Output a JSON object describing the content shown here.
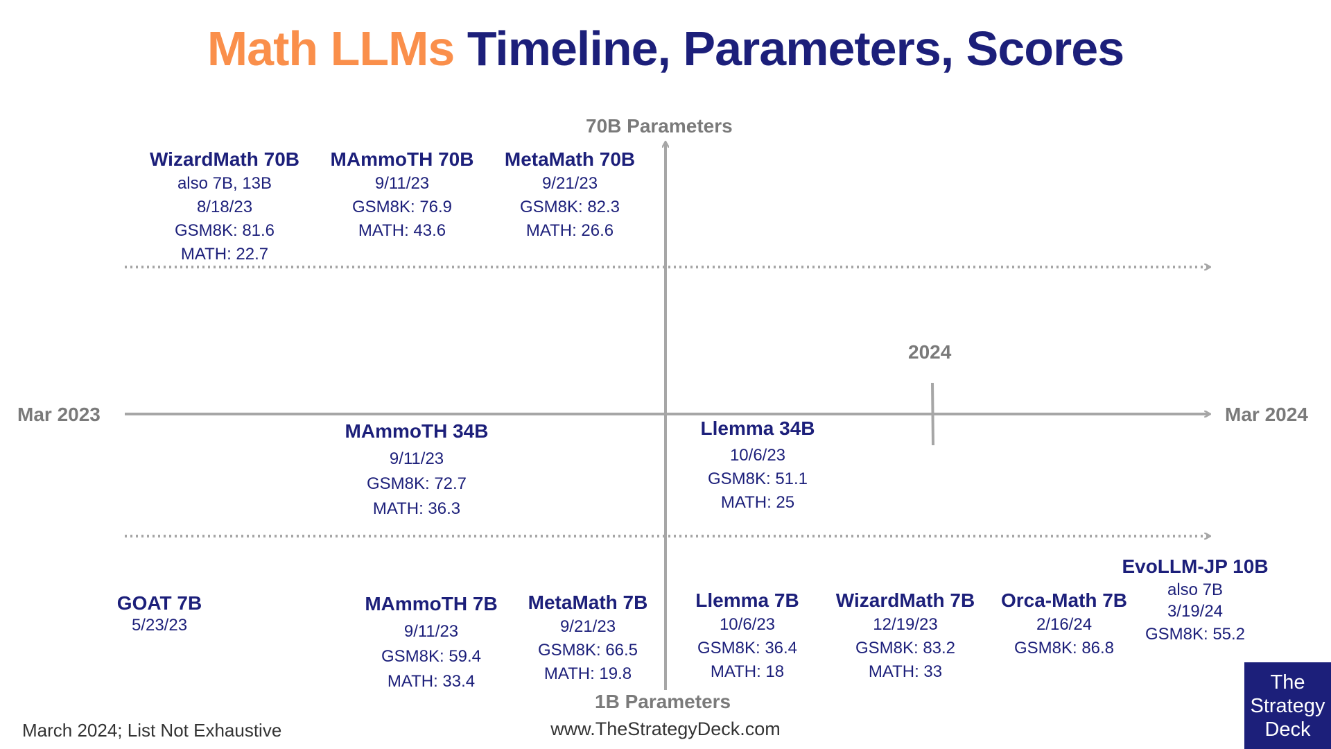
{
  "title": {
    "accent": "Math LLMs",
    "rest": "Timeline, Parameters, Scores"
  },
  "axes": {
    "top": "70B Parameters",
    "bottom": "1B Parameters",
    "left": "Mar 2023",
    "right": "Mar 2024",
    "mid_tick": "2024"
  },
  "models": [
    {
      "name": "WizardMath 70B",
      "lines": [
        "also 7B, 13B",
        "8/18/23",
        "GSM8K: 81.6",
        "MATH: 22.7"
      ]
    },
    {
      "name": "MAmmoTH 70B",
      "lines": [
        "9/11/23",
        "GSM8K: 76.9",
        "MATH: 43.6"
      ]
    },
    {
      "name": "MetaMath 70B",
      "lines": [
        "9/21/23",
        "GSM8K: 82.3",
        "MATH: 26.6"
      ]
    },
    {
      "name": "MAmmoTH 34B",
      "lines": [
        "9/11/23",
        "GSM8K: 72.7",
        "MATH: 36.3"
      ]
    },
    {
      "name": "Llemma 34B",
      "lines": [
        "10/6/23",
        "GSM8K: 51.1",
        "MATH: 25"
      ]
    },
    {
      "name": "GOAT 7B",
      "lines": [
        "5/23/23"
      ]
    },
    {
      "name": "MAmmoTH 7B",
      "lines": [
        "9/11/23",
        "GSM8K: 59.4",
        "MATH: 33.4"
      ]
    },
    {
      "name": "MetaMath 7B",
      "lines": [
        "9/21/23",
        "GSM8K: 66.5",
        "MATH: 19.8"
      ]
    },
    {
      "name": "Llemma 7B",
      "lines": [
        "10/6/23",
        "GSM8K: 36.4",
        "MATH: 18"
      ]
    },
    {
      "name": "WizardMath 7B",
      "lines": [
        "12/19/23",
        "GSM8K: 83.2",
        "MATH: 33"
      ]
    },
    {
      "name": "Orca-Math 7B",
      "lines": [
        "2/16/24",
        "GSM8K: 86.8"
      ]
    },
    {
      "name": "EvoLLM-JP 10B",
      "lines": [
        "also 7B",
        "3/19/24",
        "GSM8K: 55.2"
      ]
    }
  ],
  "footer": {
    "note": "March 2024; List Not Exhaustive",
    "site": "www.TheStrategyDeck.com",
    "brand": [
      "The",
      "Strategy",
      "Deck"
    ]
  },
  "colors": {
    "accent": "#FA8F4B",
    "navy": "#1C1F7A",
    "axis": "#A6A6A6"
  }
}
